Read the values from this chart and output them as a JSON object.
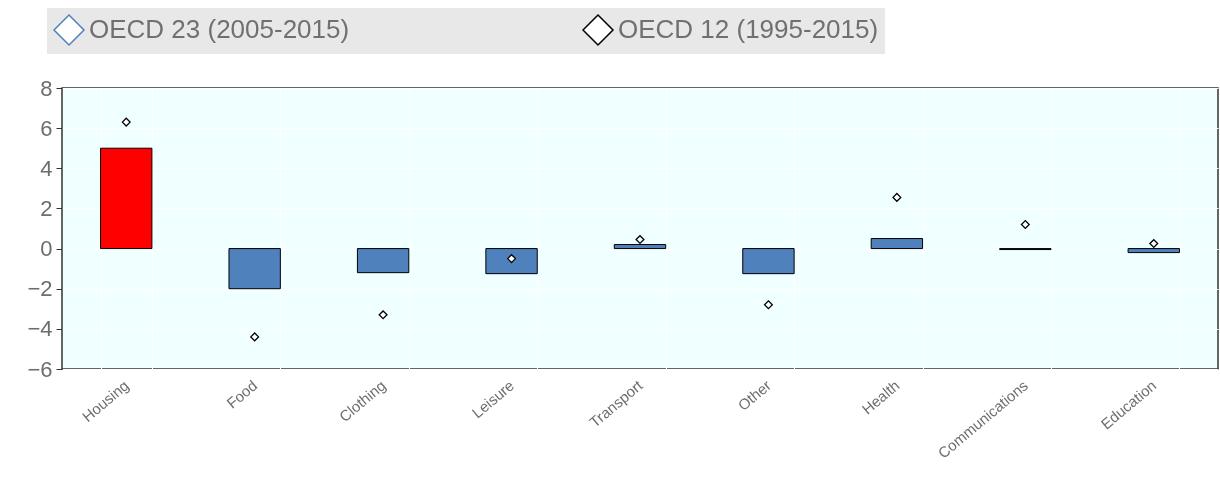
{
  "chart_data": {
    "type": "bar",
    "categories": [
      "Housing",
      "Food",
      "Clothing",
      "Leisure",
      "Transport",
      "Other",
      "Health",
      "Communications",
      "Education"
    ],
    "series": [
      {
        "name": "OECD 23 (2005-2015)",
        "color": "#4f81bd",
        "colors": [
          "#ff0000",
          "#4f81bd",
          "#4f81bd",
          "#4f81bd",
          "#4f81bd",
          "#4f81bd",
          "#4f81bd",
          "#4f81bd",
          "#4f81bd"
        ],
        "values": [
          5.0,
          -2.0,
          -1.2,
          -1.25,
          0.2,
          -1.25,
          0.5,
          -0.05,
          -0.2
        ]
      },
      {
        "name": "OECD 12 (1995-2015)",
        "type": "scatter",
        "color": "#000000",
        "marker": "diamond",
        "values": [
          6.3,
          -4.4,
          -3.3,
          -0.5,
          0.45,
          -2.8,
          2.55,
          1.2,
          0.25
        ]
      }
    ],
    "ylim": [
      -6,
      8
    ],
    "yticks": [
      -6,
      -4,
      -2,
      0,
      2,
      4,
      6,
      8
    ],
    "grid": true,
    "legend": "top"
  }
}
